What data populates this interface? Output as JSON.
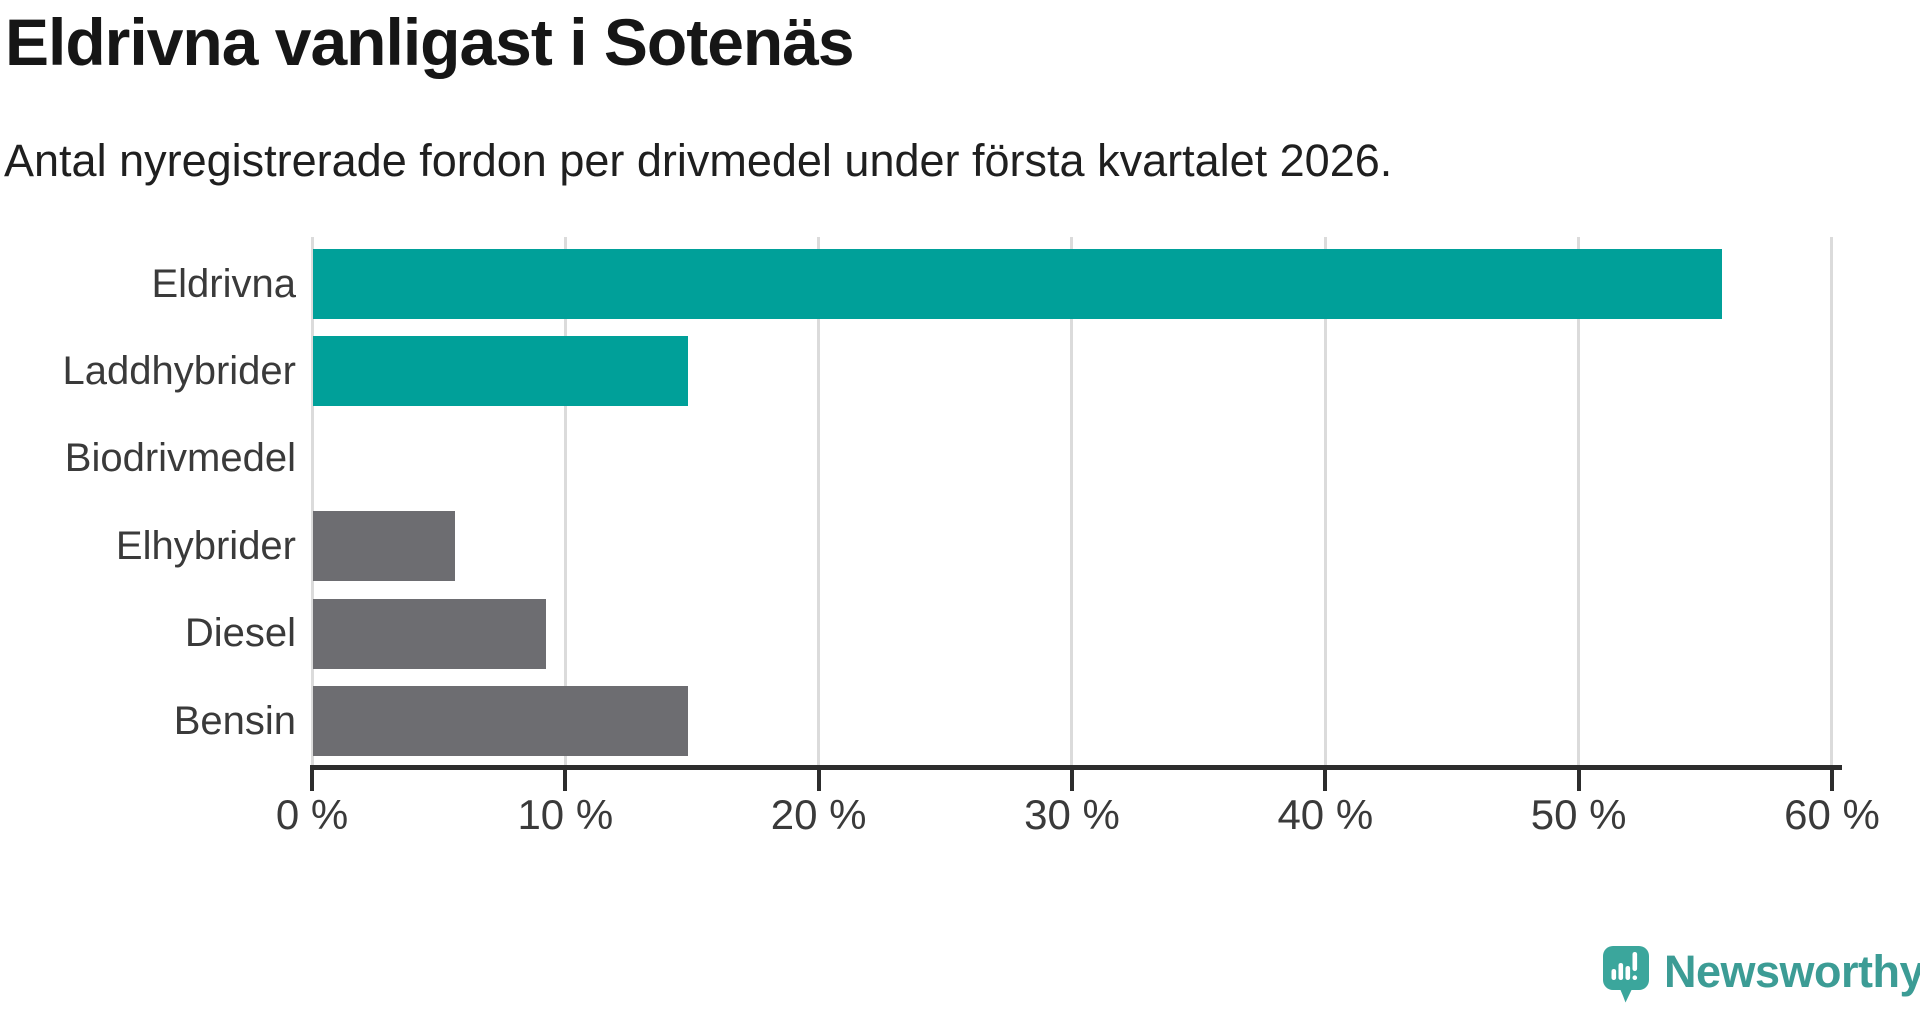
{
  "chart_data": {
    "type": "bar",
    "orientation": "horizontal",
    "title": "Eldrivna vanligast i Sotenäs",
    "subtitle": "Antal nyregistrerade fordon per drivmedel under första kvartalet 2026.",
    "categories": [
      "Eldrivna",
      "Laddhybrider",
      "Biodrivmedel",
      "Elhybrider",
      "Diesel",
      "Bensin"
    ],
    "values": [
      55.6,
      14.8,
      0,
      5.6,
      9.2,
      14.8
    ],
    "unit": "%",
    "bar_colors": [
      "#00a099",
      "#00a099",
      "#6d6d71",
      "#6d6d71",
      "#6d6d71",
      "#6d6d71"
    ],
    "xlim": [
      0,
      60
    ],
    "x_tick_values": [
      0,
      10,
      20,
      30,
      40,
      50,
      60
    ],
    "x_tick_labels": [
      "0 %",
      "10 %",
      "20 %",
      "30 %",
      "40 %",
      "50 %",
      "60 %"
    ],
    "grid": true,
    "legend": false,
    "ylabel": "",
    "xlabel": ""
  },
  "colors": {
    "highlight_teal": "#00a099",
    "neutral_gray": "#6d6d71",
    "axis": "#2d2d2d",
    "gridline": "#dbdbdb",
    "title_text": "#161616",
    "label_text": "#3a3a3a"
  },
  "branding": {
    "label": "Newsworthy",
    "text_color": "#3c9c95",
    "icon_color": "#3ba69c",
    "icon_glyph_color": "#ffffff"
  }
}
